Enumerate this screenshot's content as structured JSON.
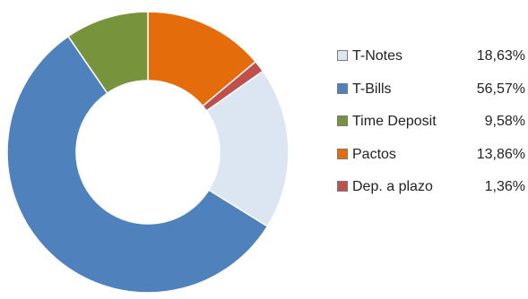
{
  "chart_data": {
    "type": "pie",
    "donut": true,
    "title": "",
    "categories": [
      "T-Notes",
      "T-Bills",
      "Time Deposit",
      "Pactos",
      "Dep. a plazo"
    ],
    "values": [
      18.63,
      56.57,
      9.58,
      13.86,
      1.36
    ],
    "value_labels": [
      "18,63%",
      "56,57%",
      "9,58%",
      "13,86%",
      "1,36%"
    ],
    "colors": [
      "#dce6f2",
      "#4f81bd",
      "#77933c",
      "#e46c0a",
      "#c0504d"
    ],
    "legend_position": "right",
    "start": "top, clockwise order: Pactos, Dep. a plazo, T-Notes, T-Bills, Time Deposit"
  },
  "legend": {
    "items": [
      {
        "label": "T-Notes",
        "value": "18,63%"
      },
      {
        "label": "T-Bills",
        "value": "56,57%"
      },
      {
        "label": "Time Deposit",
        "value": "9,58%"
      },
      {
        "label": "Pactos",
        "value": "13,86%"
      },
      {
        "label": "Dep. a plazo",
        "value": "1,36%"
      }
    ]
  }
}
